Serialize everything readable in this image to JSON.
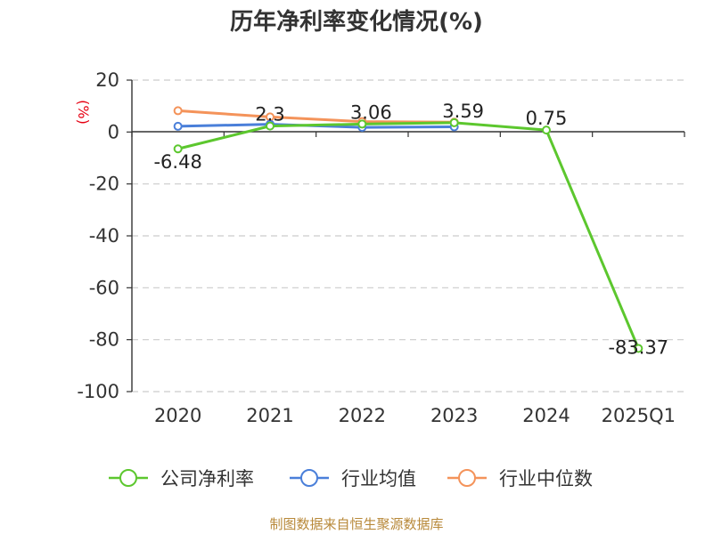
{
  "chart_data": {
    "type": "line",
    "title": "历年净利率变化情况(%)",
    "ylabel": "(%)",
    "ylim": [
      -100,
      20
    ],
    "yticks": [
      20,
      0,
      -20,
      -40,
      -60,
      -80,
      -100
    ],
    "categories": [
      "2020",
      "2021",
      "2022",
      "2023",
      "2024",
      "2025Q1"
    ],
    "grid": true,
    "legend_position": "bottom",
    "series": [
      {
        "name": "公司净利率",
        "color": "#5cc72e",
        "values": [
          -6.48,
          2.3,
          3.06,
          3.59,
          0.75,
          -83.37
        ],
        "labels": [
          "-6.48",
          "2.3",
          "3.06",
          "3.59",
          "0.75",
          "-83.37"
        ]
      },
      {
        "name": "行业均值",
        "color": "#4a7fd9",
        "values": [
          2.2,
          3.0,
          1.8,
          2.0,
          null,
          null
        ]
      },
      {
        "name": "行业中位数",
        "color": "#f4935a",
        "values": [
          8.2,
          5.8,
          4.0,
          3.8,
          null,
          null
        ]
      }
    ],
    "source": "制图数据来自恒生聚源数据库"
  }
}
